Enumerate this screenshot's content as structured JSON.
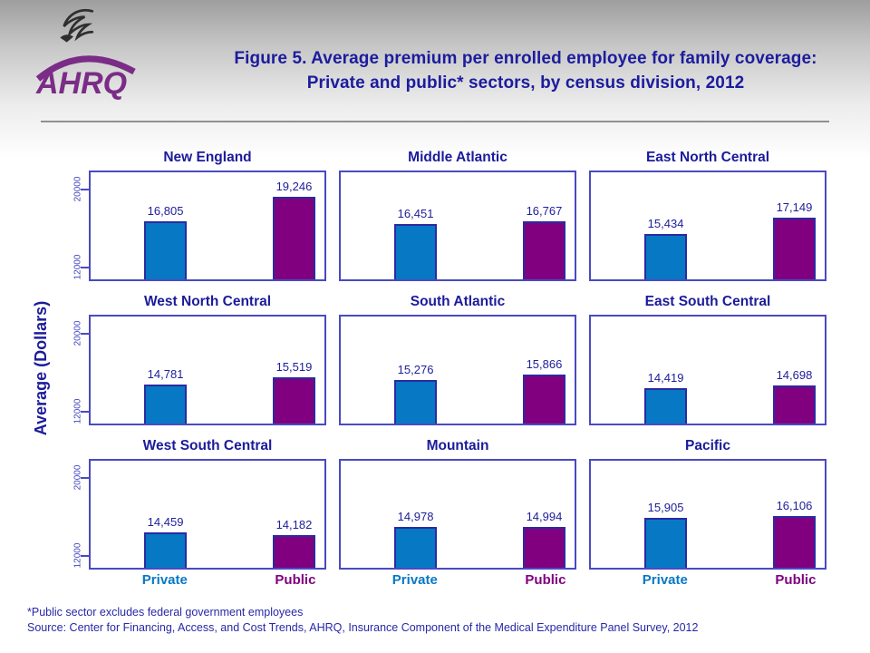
{
  "header": {
    "logo_text": "AHRQ",
    "title_line1": "Figure 5. Average premium per enrolled employee for family coverage:",
    "title_line2": "Private and public* sectors, by census division, 2012"
  },
  "chart_data": {
    "type": "bar",
    "title": "Figure 5. Average premium per enrolled employee for family coverage: Private and public* sectors, by census division, 2012",
    "y_axis_title": "Average (Dollars)",
    "categories": [
      "Private",
      "Public"
    ],
    "y_ticks": [
      12000,
      20000
    ],
    "ylim": [
      10800,
      21800
    ],
    "grid": false,
    "legend_position": "none",
    "panels": [
      {
        "division": "New England",
        "values": {
          "Private": 16805,
          "Public": 19246
        }
      },
      {
        "division": "Middle Atlantic",
        "values": {
          "Private": 16451,
          "Public": 16767
        }
      },
      {
        "division": "East North Central",
        "values": {
          "Private": 15434,
          "Public": 17149
        }
      },
      {
        "division": "West North Central",
        "values": {
          "Private": 14781,
          "Public": 15519
        }
      },
      {
        "division": "South Atlantic",
        "values": {
          "Private": 15276,
          "Public": 15866
        }
      },
      {
        "division": "East South Central",
        "values": {
          "Private": 14419,
          "Public": 14698
        }
      },
      {
        "division": "West South Central",
        "values": {
          "Private": 14459,
          "Public": 14182
        }
      },
      {
        "division": "Mountain",
        "values": {
          "Private": 14978,
          "Public": 14994
        }
      },
      {
        "division": "Pacific",
        "values": {
          "Private": 15905,
          "Public": 16106
        }
      }
    ],
    "colors": {
      "Private": "#0778c4",
      "Public": "#800080",
      "bar_border": "#2a2aa2",
      "panel_border": "#4a4ac2",
      "value_label": "#20209b",
      "panel_title": "#1b1b9b",
      "figure_title": "#1c1c9e",
      "tick_label": "#4444c0",
      "footer_text": "#2828a8",
      "logo_purple": "#7b2c86"
    }
  },
  "footer": {
    "footnote": "*Public sector excludes federal government employees",
    "source": "Source: Center for Financing, Access, and Cost Trends, AHRQ, Insurance Component of the Medical Expenditure Panel Survey,  2012"
  }
}
